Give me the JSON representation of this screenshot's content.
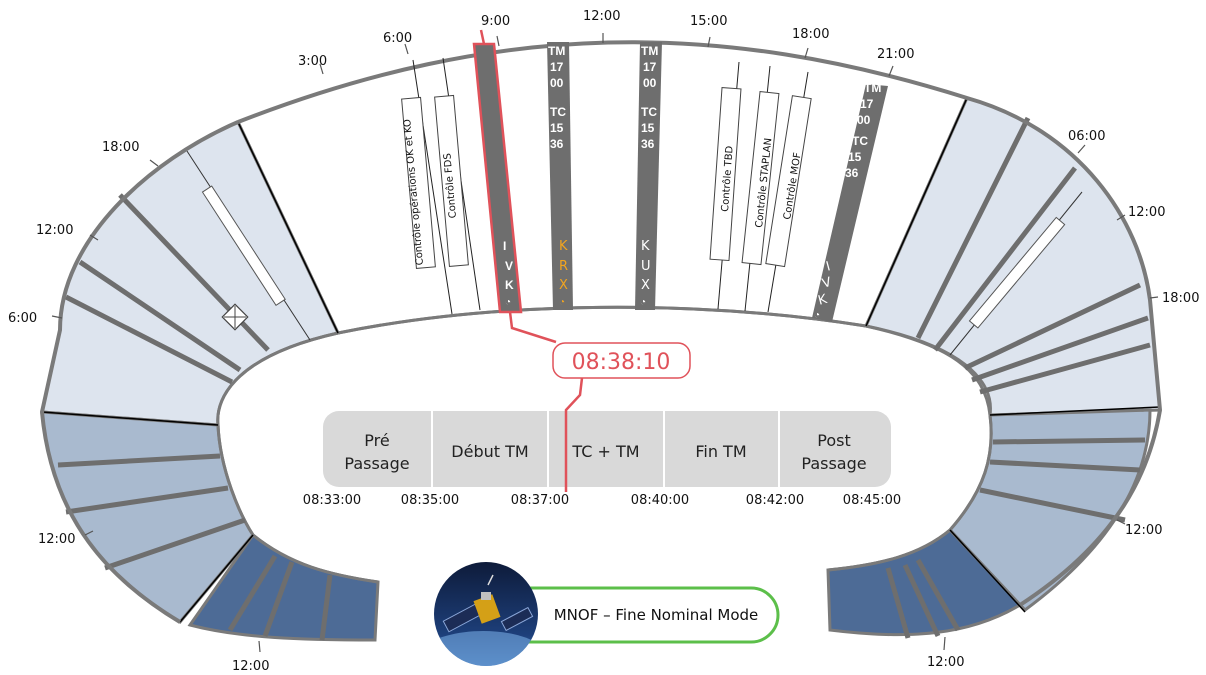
{
  "ring_ticks": {
    "t3": "3:00",
    "t6": "6:00",
    "t9": "9:00",
    "t12": "12:00",
    "t15": "15:00",
    "t18": "18:00",
    "t21": "21:00",
    "r06": "06:00",
    "r12": "12:00",
    "r18": "18:00",
    "r12b": "12:00",
    "r12c": "12:00",
    "l18": "18:00",
    "l12": "12:00",
    "l6": "6:00",
    "l12b": "12:00",
    "l12c": "12:00"
  },
  "controls": {
    "ops": "Contrôle opérations OK et KO",
    "fds": "Contrôle FDS",
    "tbd": "Contrôle TBD",
    "staplan": "Contrôle STAPLAN",
    "mof": "Contrôle MOF"
  },
  "passes": [
    {
      "station": [
        "I",
        "V",
        "K"
      ],
      "tm": "",
      "tc": "",
      "station_color": "#ffffff"
    },
    {
      "station": [
        "K",
        "R",
        "X"
      ],
      "tm": "TM 17 00",
      "tc": "TC 15 36",
      "station_color": "#f2a51f"
    },
    {
      "station": [
        "K",
        "U",
        "X"
      ],
      "tm": "TM 17 00",
      "tc": "TC 15 36",
      "station_color": "#ffffff"
    },
    {
      "station": [
        "I",
        "V",
        "K"
      ],
      "tm": "TM 17 00",
      "tc": "TC 15 36",
      "station_color": "#ffffff"
    }
  ],
  "pass_text": {
    "tm1": "TM",
    "tm2": "17",
    "tm3": "00",
    "tc1": "TC",
    "tc2": "15",
    "tc3": "36"
  },
  "current_time": "08:38:10",
  "phases": {
    "pre": [
      "Pré",
      "Passage"
    ],
    "debut": "Début TM",
    "tctm": "TC + TM",
    "fin": "Fin TM",
    "post": [
      "Post",
      "Passage"
    ]
  },
  "phase_times": [
    "08:33:00",
    "08:35:00",
    "08:37:00",
    "08:40:00",
    "08:42:00",
    "08:45:00"
  ],
  "mode": "MNOF – Fine Nominal Mode",
  "colors": {
    "ring_white": "#ffffff",
    "ring_light": "#dde4ee",
    "ring_mid": "#a9bacf",
    "ring_dark": "#4d6b96",
    "pass_gray": "#6e6e6e",
    "now_red": "#e0525a",
    "mode_green": "#5cbf4a"
  }
}
